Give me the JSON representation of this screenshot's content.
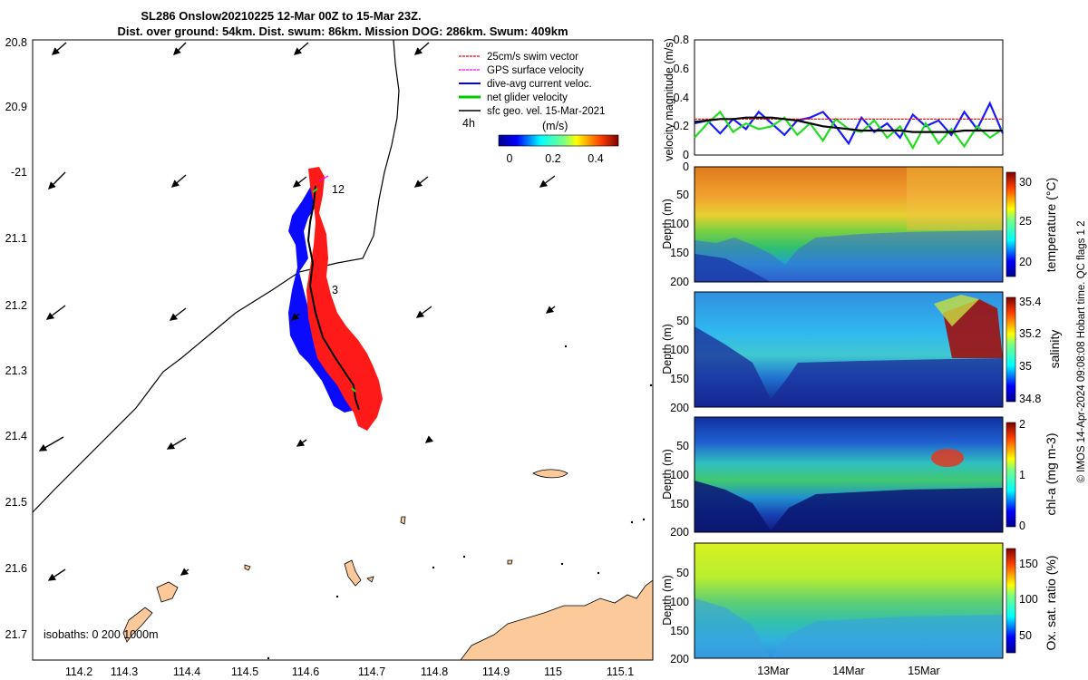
{
  "title_line1": "SL286 Onslow20210225 12-Mar 00Z to 15-Mar 23Z.",
  "title_line2": "Dist. over ground: 54km. Dist. swum: 86km. Mission DOG: 286km. Swum: 409km",
  "map": {
    "lat_ticks": [
      "20.8",
      "20.9",
      "-21",
      "21.1",
      "21.2",
      "21.3",
      "21.4",
      "21.5",
      "21.6",
      "21.7"
    ],
    "lon_ticks": [
      "114.2",
      "114.3",
      "114.4",
      "114.5",
      "114.6",
      "114.7",
      "114.8",
      "114.9",
      "115",
      "115.1"
    ],
    "legend": [
      {
        "label": "25cm/s swim vector",
        "color": "#ff0000"
      },
      {
        "label": "GPS surface velocity",
        "color": "#ff00ff"
      },
      {
        "label": "dive-avg current veloc.",
        "color": "#0000ff"
      },
      {
        "label": "net glider velocity",
        "color": "#00cc00"
      },
      {
        "label": "sfc geo. vel. 15-Mar-2021",
        "color": "#000000"
      }
    ],
    "vector_interval": "4h",
    "colorbar_title": "(m/s)",
    "colorbar_ticks": [
      "0",
      "0.2",
      "0.4"
    ],
    "day_labels": [
      "12",
      "3"
    ],
    "isobaths_label": "isobaths: 0   200  1000m"
  },
  "chart_data": [
    {
      "type": "line",
      "title": "",
      "ylabel": "velocity magnitude (m/s)",
      "ylim": [
        0,
        0.8
      ],
      "yticks": [
        "0",
        "0.2",
        "0.4",
        "0.6",
        "0.8"
      ],
      "series": [
        {
          "name": "dive-avg current",
          "color": "#1a1aff",
          "values": [
            0.22,
            0.24,
            0.15,
            0.25,
            0.18,
            0.3,
            0.22,
            0.14,
            0.24,
            0.26,
            0.3,
            0.2,
            0.08,
            0.26,
            0.16,
            0.22,
            0.12,
            0.28,
            0.2,
            0.24,
            0.14,
            0.3,
            0.18,
            0.36,
            0.15
          ]
        },
        {
          "name": "net glider",
          "color": "#22dd22",
          "values": [
            0.12,
            0.22,
            0.3,
            0.16,
            0.22,
            0.18,
            0.2,
            0.26,
            0.14,
            0.22,
            0.1,
            0.25,
            0.18,
            0.16,
            0.24,
            0.12,
            0.2,
            0.05,
            0.22,
            0.08,
            0.18,
            0.06,
            0.2,
            0.12,
            0.18
          ]
        },
        {
          "name": "swim speed",
          "color": "#ee0000",
          "values": [
            0.25,
            0.25,
            0.25,
            0.25,
            0.25,
            0.25,
            0.25,
            0.25,
            0.25,
            0.25,
            0.25,
            0.25,
            0.25,
            0.25,
            0.25,
            0.25,
            0.25,
            0.25,
            0.25,
            0.25,
            0.25,
            0.25,
            0.25,
            0.25,
            0.25
          ]
        },
        {
          "name": "geostrophic",
          "color": "#000000",
          "values": [
            0.23,
            0.24,
            0.25,
            0.25,
            0.26,
            0.26,
            0.26,
            0.25,
            0.24,
            0.22,
            0.2,
            0.19,
            0.18,
            0.17,
            0.17,
            0.17,
            0.17,
            0.16,
            0.16,
            0.16,
            0.16,
            0.17,
            0.17,
            0.17,
            0.17
          ]
        }
      ]
    },
    {
      "type": "heatmap",
      "ylabel": "Depth (m)",
      "yticks": [
        "0",
        "50",
        "100",
        "150",
        "200"
      ],
      "colorbar_label": "temperature (°C)",
      "colorbar_ticks": [
        "30",
        "25",
        "20"
      ]
    },
    {
      "type": "heatmap",
      "ylabel": "Depth (m)",
      "yticks": [
        "50",
        "100",
        "150",
        "200"
      ],
      "colorbar_label": "salinity",
      "colorbar_ticks": [
        "35.4",
        "35.2",
        "35",
        "34.8"
      ]
    },
    {
      "type": "heatmap",
      "ylabel": "Depth (m)",
      "yticks": [
        "50",
        "100",
        "150",
        "200"
      ],
      "colorbar_label": "chl-a (mg m-3)",
      "colorbar_ticks": [
        "2",
        "1",
        "0"
      ]
    },
    {
      "type": "heatmap",
      "ylabel": "Depth (m)",
      "yticks": [
        "50",
        "100",
        "150",
        "200"
      ],
      "colorbar_label": "Ox. sat. ratio (%)",
      "colorbar_ticks": [
        "150",
        "100",
        "50"
      ],
      "xticks": [
        "13Mar",
        "14Mar",
        "15Mar"
      ]
    }
  ],
  "side_note": "© IMOS 14-Apr-2024 09:08:08 Hobart time. QC flags 1  2"
}
